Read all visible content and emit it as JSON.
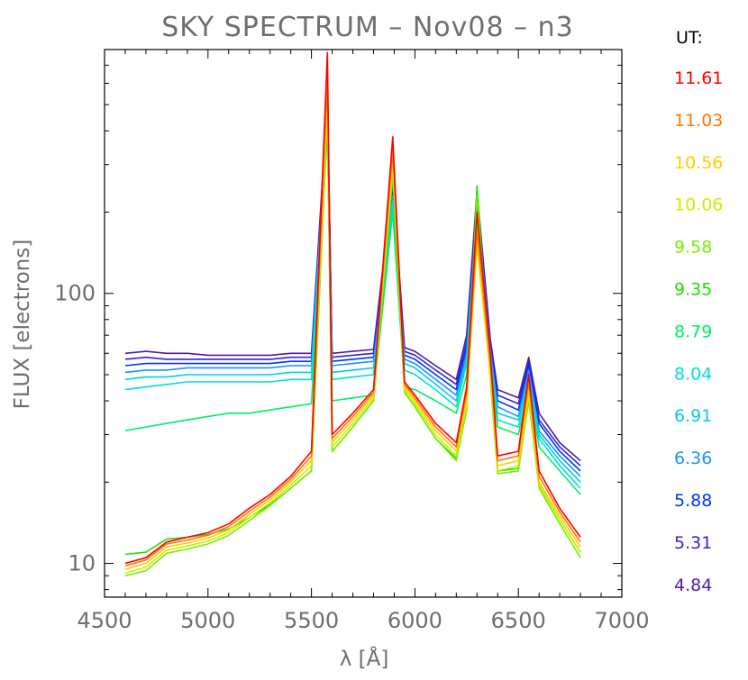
{
  "chart_data": {
    "type": "line",
    "title": "SKY SPECTRUM – Nov08 – n3",
    "xlabel": "λ [Å]",
    "ylabel": "FLUX [electrons]",
    "xlim": [
      4500,
      7000
    ],
    "ylim": [
      7.5,
      800
    ],
    "yscale": "log",
    "x_ticks": [
      "4500",
      "5000",
      "5500",
      "6000",
      "6500",
      "7000"
    ],
    "y_ticks": [
      "10",
      "100"
    ],
    "legend_title": "UT:",
    "legend_position": "right",
    "x": [
      4600,
      4700,
      4800,
      4900,
      5000,
      5100,
      5200,
      5300,
      5400,
      5500,
      5577,
      5600,
      5700,
      5800,
      5893,
      5950,
      6000,
      6100,
      6200,
      6250,
      6300,
      6364,
      6400,
      6500,
      6550,
      6600,
      6700,
      6800
    ],
    "series": [
      {
        "name": "11.61",
        "color": "#ff0000",
        "values": [
          10,
          10.5,
          12,
          12.5,
          13,
          14,
          16,
          18,
          21,
          26,
          780,
          30,
          36,
          44,
          380,
          47,
          42,
          33,
          28,
          45,
          200,
          60,
          25,
          26,
          50,
          22,
          16,
          12.5
        ]
      },
      {
        "name": "11.03",
        "color": "#ff7700",
        "values": [
          9.8,
          10.3,
          11.8,
          12.2,
          12.7,
          13.7,
          15.6,
          17.6,
          20.5,
          25,
          640,
          29,
          35,
          43,
          340,
          46,
          41,
          32,
          27,
          43,
          170,
          56,
          24,
          25,
          47,
          21,
          15.5,
          12
        ]
      },
      {
        "name": "10.56",
        "color": "#ffcc00",
        "values": [
          9.5,
          10,
          11.5,
          11.9,
          12.4,
          13.3,
          15.2,
          17.2,
          20,
          24,
          560,
          28,
          34,
          42,
          320,
          45,
          40,
          31,
          26,
          41,
          160,
          53,
          23,
          24,
          44,
          20,
          15,
          11.5
        ]
      },
      {
        "name": "10.06",
        "color": "#ccee00",
        "values": [
          9.2,
          9.7,
          11.2,
          11.6,
          12.1,
          13,
          14.8,
          16.8,
          19.5,
          23,
          500,
          27,
          33,
          41,
          300,
          44,
          39,
          30,
          25,
          39,
          150,
          50,
          22,
          23,
          42,
          19.5,
          14.5,
          11
        ]
      },
      {
        "name": "9.58",
        "color": "#77ee00",
        "values": [
          9,
          9.4,
          10.9,
          11.3,
          11.8,
          12.7,
          14.4,
          16.4,
          19,
          22,
          460,
          26,
          32,
          40,
          280,
          43,
          38,
          29,
          24,
          37,
          230,
          48,
          21.5,
          22,
          40,
          19,
          14,
          10.5
        ]
      },
      {
        "name": "9.35",
        "color": "#22dd00",
        "values": [
          10.8,
          11,
          12.3,
          12.5,
          12.8,
          13.4,
          14.8,
          16.5,
          19,
          22,
          440,
          26,
          32,
          40,
          270,
          43,
          38,
          29,
          24.5,
          38,
          250,
          49,
          22,
          22.5,
          41,
          19.5,
          14.5,
          11
        ]
      },
      {
        "name": "8.79",
        "color": "#00ee66",
        "values": [
          31,
          32,
          33,
          34,
          35,
          36,
          36,
          37,
          38,
          39,
          400,
          40,
          41,
          42,
          200,
          45,
          44,
          40,
          36,
          50,
          180,
          56,
          32,
          30,
          45,
          27,
          22,
          18
        ]
      },
      {
        "name": "8.04",
        "color": "#00dddd",
        "values": [
          44,
          45,
          46,
          47,
          47,
          47,
          47,
          47,
          48,
          48,
          430,
          48,
          49,
          50,
          210,
          52,
          50,
          44,
          38,
          55,
          190,
          58,
          34,
          32,
          48,
          29,
          23,
          19
        ]
      },
      {
        "name": "6.91",
        "color": "#00ccee",
        "values": [
          48,
          49,
          49,
          50,
          50,
          50,
          50,
          50,
          51,
          51,
          450,
          51,
          52,
          53,
          220,
          55,
          53,
          46,
          40,
          57,
          200,
          60,
          36,
          34,
          50,
          30,
          24,
          20
        ]
      },
      {
        "name": "6.36",
        "color": "#1e90ff",
        "values": [
          51,
          52,
          52,
          53,
          53,
          53,
          53,
          53,
          54,
          54,
          470,
          54,
          55,
          56,
          230,
          57,
          55,
          48,
          42,
          60,
          210,
          62,
          38,
          35,
          52,
          31,
          25,
          21
        ]
      },
      {
        "name": "5.88",
        "color": "#0033ff",
        "values": [
          54,
          55,
          55,
          55,
          55,
          55,
          55,
          55,
          56,
          56,
          490,
          56,
          57,
          58,
          240,
          59,
          57,
          50,
          44,
          63,
          220,
          64,
          40,
          37,
          54,
          33,
          26,
          22
        ]
      },
      {
        "name": "5.31",
        "color": "#3322dd",
        "values": [
          57,
          58,
          57,
          57,
          57,
          57,
          57,
          57,
          58,
          58,
          500,
          58,
          59,
          60,
          250,
          61,
          59,
          52,
          46,
          66,
          230,
          66,
          42,
          39,
          56,
          34,
          27,
          23
        ]
      },
      {
        "name": "4.84",
        "color": "#551a99",
        "values": [
          60,
          61,
          60,
          60,
          59,
          59,
          59,
          59,
          60,
          60,
          510,
          60,
          61,
          62,
          260,
          63,
          61,
          54,
          48,
          70,
          240,
          68,
          44,
          41,
          58,
          36,
          28,
          24
        ]
      }
    ]
  }
}
